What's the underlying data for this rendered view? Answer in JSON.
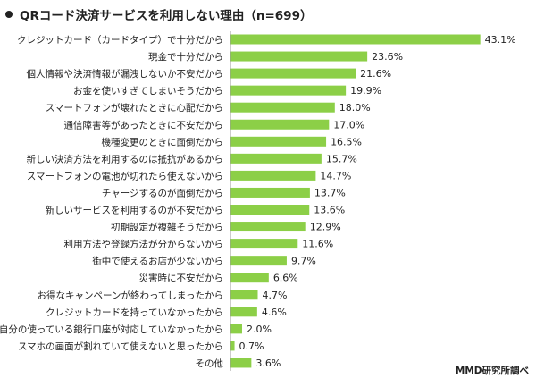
{
  "header": {
    "title": "QRコード決済サービスを利用しない理由（n=699）"
  },
  "source": "MMD研究所調べ",
  "colors": {
    "bar": "#8ccf47",
    "axis": "#9a9a9a",
    "text": "#222222"
  },
  "chart_data": {
    "type": "bar",
    "orientation": "horizontal",
    "title": "QRコード決済サービスを利用しない理由（n=699）",
    "xlim": [
      0,
      45
    ],
    "value_suffix": "%",
    "grid": false,
    "legend": "none",
    "categories": [
      "クレジットカード（カードタイプ）で十分だから",
      "現金で十分だから",
      "個人情報や決済情報が漏洩しないか不安だから",
      "お金を使いすぎてしまいそうだから",
      "スマートフォンが壊れたときに心配だから",
      "通信障害等があったときに不安だから",
      "機種変更のときに面倒だから",
      "新しい決済方法を利用するのは抵抗があるから",
      "スマートフォンの電池が切れたら使えないから",
      "チャージするのが面倒だから",
      "新しいサービスを利用するのが不安だから",
      "初期設定が複雑そうだから",
      "利用方法や登録方法が分からないから",
      "街中で使えるお店が少ないから",
      "災害時に不安だから",
      "お得なキャンペーンが終わってしまったから",
      "クレジットカードを持っていなかったから",
      "自分の使っている銀行口座が対応していなかったから",
      "スマホの画面が割れていて使えないと思ったから",
      "その他"
    ],
    "values": [
      43.1,
      23.6,
      21.6,
      19.9,
      18.0,
      17.0,
      16.5,
      15.7,
      14.7,
      13.7,
      13.6,
      12.9,
      11.6,
      9.7,
      6.6,
      4.7,
      4.6,
      2.0,
      0.7,
      3.6
    ],
    "value_labels": [
      "43.1%",
      "23.6%",
      "21.6%",
      "19.9%",
      "18.0%",
      "17.0%",
      "16.5%",
      "15.7%",
      "14.7%",
      "13.7%",
      "13.6%",
      "12.9%",
      "11.6%",
      "9.7%",
      "6.6%",
      "4.7%",
      "4.6%",
      "2.0%",
      "0.7%",
      "3.6%"
    ]
  }
}
